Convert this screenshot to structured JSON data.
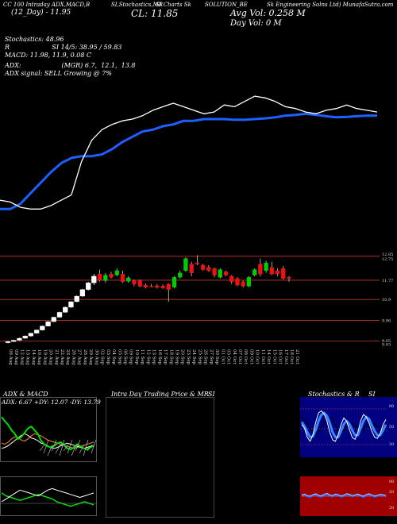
{
  "header": {
    "line1_left": "CC 100 Intraday ADX,MACD,B",
    "line1_mid": "SI,Stochastics,MR",
    "line1_mid2": "SI Charts Sk",
    "line1_right": "SOLUTION_BE",
    "line1_far": "Sk Engineering Solns Ltd) MunafaSutra.com",
    "ticker_line": "(12_Day) - 11.95",
    "close_label": "CL: 11.85",
    "avg_vol": "Avg Vol: 0.258 M",
    "day_vol": "Day Vol: 0   M",
    "stoch_line1": "Stochastics: 48.96",
    "stoch_line2": "R                     SI 14/5: 38.95 / 59.83",
    "macd_line": "MACD: 11.98,  11.9,  0.08   C",
    "adx_line1": "ADX:                    (MGR) 6.7,  12.1,  13.8",
    "adx_line2": "ADX  signal: SELL Growing @ 7%"
  },
  "panels": {
    "adx_macd_title": "ADX  & MACD",
    "adx_values": "ADX: 6.67  +DY: 12.07  -DY: 13.79",
    "intraday_title": "Intra  Day Trading Price  & MR",
    "intraday_title_si": "SI",
    "stoch_title": "Stochastics & R",
    "stoch_title_si": "SI",
    "stoch_levels": [
      "80",
      "50",
      "20"
    ],
    "rsi_levels": [
      "80",
      "50",
      "20"
    ]
  },
  "colors": {
    "sma_line": "#1e5fff",
    "price_line": "#ffffff",
    "up_candle": "#00cc00",
    "down_candle": "#ee1111",
    "grid_line": "#c0392b",
    "rsi_bg": "#a00000",
    "stoch_bg": "#000080"
  },
  "chart_data": [
    {
      "type": "line",
      "title": "",
      "series": [
        {
          "name": "",
          "values": [
            10.05,
            10.05,
            10.2,
            10.5,
            10.8,
            11.1,
            11.35,
            11.5,
            11.55,
            11.55,
            11.6,
            11.75,
            11.95,
            12.1,
            12.25,
            12.3,
            12.4,
            12.45,
            12.55,
            12.55,
            12.6,
            12.6,
            12.6,
            12.58,
            12.58,
            12.6,
            12.62,
            12.65,
            12.7,
            12.72,
            12.75,
            12.72,
            12.68,
            12.65,
            12.66,
            12.68,
            12.7,
            12.7
          ]
        },
        {
          "name": "",
          "values": [
            10.3,
            10.25,
            10.1,
            10.05,
            10.05,
            10.15,
            10.3,
            10.45,
            11.4,
            12.0,
            12.3,
            12.45,
            12.55,
            12.6,
            12.7,
            12.85,
            12.95,
            13.05,
            12.95,
            12.85,
            12.75,
            12.8,
            13.0,
            12.95,
            13.1,
            13.25,
            13.2,
            13.1,
            12.95,
            12.9,
            12.8,
            12.75,
            12.85,
            12.9,
            13.0,
            12.9,
            12.85,
            12.8
          ]
        }
      ]
    },
    {
      "type": "bar",
      "title": "",
      "categories": [
        "08 Aug",
        "09 Aug",
        "12 Aug",
        "13 Aug",
        "14 Aug",
        "16 Aug",
        "19 Aug",
        "20 Aug",
        "21 Aug",
        "22 Aug",
        "23 Aug",
        "26 Aug",
        "27 Aug",
        "28 Aug",
        "29 Aug",
        "30 Aug",
        "02 Sep",
        "03 Sep",
        "04 Sep",
        "05 Sep",
        "06 Sep",
        "09 Sep",
        "10 Sep",
        "11 Sep",
        "12 Sep",
        "13 Sep",
        "16 Sep",
        "17 Sep",
        "18 Sep",
        "19 Sep",
        "20 Sep",
        "23 Sep",
        "24 Sep",
        "25 Sep",
        "26 Sep",
        "27 Sep",
        "30 Sep",
        "01 Oct",
        "03 Oct",
        "04 Oct",
        "07 Oct",
        "08 Oct",
        "09 Oct",
        "10 Oct",
        "11 Oct",
        "14 Oct",
        "15 Oct",
        "16 Oct",
        "17 Oct",
        "18 Oct",
        "21 Oct"
      ],
      "y_ticks": [
        "12.85",
        "12.75",
        "11.77",
        "10.9",
        "9.96",
        "9.05",
        "9.03"
      ],
      "candles": [
        {
          "o": 8.95,
          "h": 9.02,
          "l": 8.92,
          "c": 9.0
        },
        {
          "o": 9.0,
          "h": 9.08,
          "l": 8.98,
          "c": 9.06
        },
        {
          "o": 9.06,
          "h": 9.18,
          "l": 9.04,
          "c": 9.15
        },
        {
          "o": 9.15,
          "h": 9.28,
          "l": 9.12,
          "c": 9.25
        },
        {
          "o": 9.25,
          "h": 9.4,
          "l": 9.22,
          "c": 9.38
        },
        {
          "o": 9.38,
          "h": 9.55,
          "l": 9.35,
          "c": 9.52
        },
        {
          "o": 9.52,
          "h": 9.72,
          "l": 9.5,
          "c": 9.7
        },
        {
          "o": 9.7,
          "h": 9.92,
          "l": 9.68,
          "c": 9.9
        },
        {
          "o": 9.9,
          "h": 10.12,
          "l": 9.88,
          "c": 10.1
        },
        {
          "o": 10.1,
          "h": 10.35,
          "l": 10.08,
          "c": 10.32
        },
        {
          "o": 10.32,
          "h": 10.58,
          "l": 10.3,
          "c": 10.55
        },
        {
          "o": 10.55,
          "h": 10.82,
          "l": 10.52,
          "c": 10.8
        },
        {
          "o": 10.8,
          "h": 11.08,
          "l": 10.78,
          "c": 11.05
        },
        {
          "o": 11.05,
          "h": 11.38,
          "l": 11.02,
          "c": 11.35
        },
        {
          "o": 11.35,
          "h": 11.7,
          "l": 11.3,
          "c": 11.65
        },
        {
          "o": 11.65,
          "h": 12.05,
          "l": 11.55,
          "c": 11.95
        },
        {
          "o": 12.05,
          "h": 12.25,
          "l": 11.7,
          "c": 11.75
        },
        {
          "o": 11.75,
          "h": 12.1,
          "l": 11.65,
          "c": 12.0
        },
        {
          "o": 12.05,
          "h": 12.15,
          "l": 11.85,
          "c": 11.9
        },
        {
          "o": 12.0,
          "h": 12.3,
          "l": 11.95,
          "c": 12.2
        },
        {
          "o": 12.05,
          "h": 12.2,
          "l": 11.65,
          "c": 11.7
        },
        {
          "o": 11.72,
          "h": 11.95,
          "l": 11.65,
          "c": 11.88
        },
        {
          "o": 11.75,
          "h": 11.8,
          "l": 11.5,
          "c": 11.6
        },
        {
          "o": 11.75,
          "h": 11.8,
          "l": 11.45,
          "c": 11.5
        },
        {
          "o": 11.55,
          "h": 11.62,
          "l": 11.4,
          "c": 11.45
        },
        {
          "o": 11.5,
          "h": 11.6,
          "l": 11.45,
          "c": 11.48
        },
        {
          "o": 11.52,
          "h": 11.6,
          "l": 11.4,
          "c": 11.45
        },
        {
          "o": 11.5,
          "h": 11.58,
          "l": 11.38,
          "c": 11.42
        },
        {
          "o": 11.6,
          "h": 11.62,
          "l": 10.8,
          "c": 11.35
        },
        {
          "o": 11.45,
          "h": 11.95,
          "l": 11.4,
          "c": 11.9
        },
        {
          "o": 11.9,
          "h": 12.2,
          "l": 11.85,
          "c": 12.1
        },
        {
          "o": 12.2,
          "h": 12.8,
          "l": 12.15,
          "c": 12.75
        },
        {
          "o": 12.5,
          "h": 12.6,
          "l": 11.95,
          "c": 12.1
        },
        {
          "o": 12.55,
          "h": 12.9,
          "l": 12.45,
          "c": 12.5
        },
        {
          "o": 12.45,
          "h": 12.5,
          "l": 12.2,
          "c": 12.25
        },
        {
          "o": 12.35,
          "h": 12.45,
          "l": 12.15,
          "c": 12.2
        },
        {
          "o": 12.3,
          "h": 12.35,
          "l": 11.9,
          "c": 12.0
        },
        {
          "o": 11.9,
          "h": 12.3,
          "l": 11.85,
          "c": 12.25
        },
        {
          "o": 12.15,
          "h": 12.2,
          "l": 11.95,
          "c": 12.0
        },
        {
          "o": 11.95,
          "h": 12.0,
          "l": 11.6,
          "c": 11.7
        },
        {
          "o": 11.85,
          "h": 11.9,
          "l": 11.5,
          "c": 11.55
        },
        {
          "o": 11.7,
          "h": 11.75,
          "l": 11.45,
          "c": 11.5
        },
        {
          "o": 11.5,
          "h": 11.95,
          "l": 11.45,
          "c": 11.9
        },
        {
          "o": 12.0,
          "h": 12.3,
          "l": 11.95,
          "c": 12.25
        },
        {
          "o": 12.5,
          "h": 12.75,
          "l": 11.95,
          "c": 12.05
        },
        {
          "o": 12.2,
          "h": 12.65,
          "l": 12.1,
          "c": 12.55
        },
        {
          "o": 12.35,
          "h": 12.6,
          "l": 12.0,
          "c": 12.05
        },
        {
          "o": 12.2,
          "h": 12.3,
          "l": 11.95,
          "c": 12.05
        },
        {
          "o": 12.3,
          "h": 12.4,
          "l": 11.8,
          "c": 11.85
        },
        {
          "o": 11.9,
          "h": 11.95,
          "l": 11.7,
          "c": 11.85
        }
      ]
    },
    {
      "type": "line",
      "title": "",
      "series": [
        {
          "name": "",
          "values": [
            80,
            72,
            65,
            55,
            48,
            38,
            42,
            50,
            58,
            62,
            55,
            48,
            35,
            28,
            24,
            22,
            25,
            30,
            32,
            26,
            20,
            18,
            22,
            28,
            24,
            20,
            18,
            22,
            25
          ]
        },
        {
          "name": "",
          "values": [
            20,
            22,
            25,
            30,
            35,
            40,
            45,
            48,
            45,
            40,
            38,
            35,
            30,
            28,
            25,
            22,
            20,
            22,
            25,
            28,
            30,
            28,
            26,
            24,
            22,
            20,
            22,
            24,
            26
          ]
        },
        {
          "name": "",
          "values": [
            30,
            28,
            32,
            38,
            42,
            40,
            36,
            34,
            38,
            44,
            48,
            46,
            44,
            40,
            36,
            34,
            32,
            30,
            28,
            26,
            24,
            22,
            20,
            22,
            24,
            26,
            28,
            30,
            32
          ]
        }
      ]
    },
    {
      "type": "line",
      "title": "",
      "series": [
        {
          "name": "",
          "values": [
            18,
            16,
            15,
            14,
            13,
            14,
            15,
            16,
            17,
            16,
            15,
            14,
            12,
            11,
            10,
            9,
            10,
            11,
            12,
            11,
            10
          ]
        },
        {
          "name": "",
          "values": [
            12,
            14,
            16,
            18,
            20,
            19,
            18,
            17,
            16,
            18,
            20,
            21,
            20,
            19,
            18,
            17,
            16,
            15,
            16,
            17,
            18
          ]
        }
      ]
    },
    {
      "type": "line",
      "title": "",
      "series": [
        {
          "name": "",
          "values": [
            55,
            48,
            30,
            22,
            35,
            60,
            78,
            82,
            76,
            62,
            40,
            25,
            22,
            35,
            55,
            68,
            62,
            45,
            30,
            26,
            40,
            62,
            75,
            70,
            58,
            42,
            30,
            28,
            38,
            55,
            65
          ]
        },
        {
          "name": "",
          "values": [
            60,
            52,
            40,
            30,
            32,
            45,
            62,
            74,
            78,
            72,
            58,
            40,
            30,
            30,
            42,
            56,
            62,
            56,
            44,
            34,
            34,
            48,
            62,
            70,
            66,
            54,
            42,
            34,
            34,
            44,
            55
          ]
        },
        {
          "name": "",
          "values": [
            70,
            65,
            58,
            48,
            40,
            38,
            42,
            50,
            60,
            68,
            70,
            64,
            55,
            46,
            40,
            42,
            48,
            55,
            58,
            54,
            48,
            44,
            46,
            52,
            58,
            60,
            56,
            50,
            46,
            44,
            48
          ]
        }
      ]
    },
    {
      "type": "line",
      "title": "",
      "series": [
        {
          "name": "",
          "values": [
            52,
            55,
            50,
            48,
            53,
            56,
            51,
            49,
            54,
            57,
            52,
            50,
            55,
            53,
            49,
            51,
            56,
            54,
            50,
            52,
            55,
            51,
            48,
            53,
            56,
            52,
            49,
            51,
            54,
            53,
            50
          ]
        },
        {
          "name": "",
          "values": [
            50,
            50,
            50,
            50,
            50,
            50,
            50,
            50,
            50,
            50,
            50,
            50,
            50,
            50,
            50,
            50,
            50,
            50,
            50,
            50,
            50,
            50,
            50,
            50,
            50,
            50,
            50,
            50,
            50,
            50,
            50
          ]
        }
      ]
    }
  ]
}
